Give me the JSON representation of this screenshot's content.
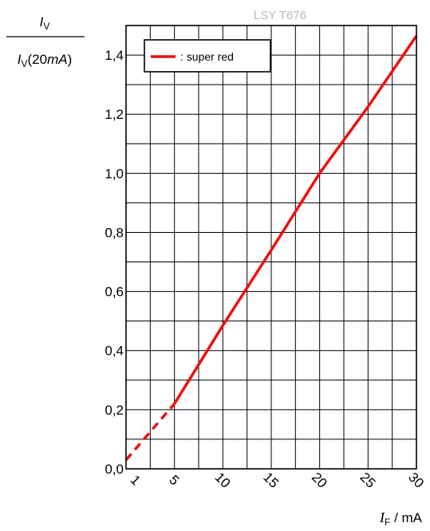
{
  "chart_data": {
    "type": "line",
    "watermark": "LSY T676",
    "ylabel": {
      "numerator": "I",
      "numerator_sub": "V",
      "denominator_i": "I",
      "denominator_sub": "V",
      "denominator_rest_open": "(20",
      "denominator_rest_italic": "mA",
      "denominator_rest_close": ")"
    },
    "xlabel": {
      "symbol": "I",
      "sub": "F",
      "unit": " / mA"
    },
    "xlim": [
      0,
      30
    ],
    "ylim": [
      0,
      1.5
    ],
    "xticks": [
      1,
      5,
      10,
      15,
      20,
      25,
      30
    ],
    "x_grid": [
      2.5,
      5,
      7.5,
      10,
      12.5,
      15,
      17.5,
      20,
      22.5,
      25,
      27.5,
      30
    ],
    "yticks": [
      "0,0",
      "0,2",
      "0,4",
      "0,6",
      "0,8",
      "1,0",
      "1,2",
      "1,4"
    ],
    "ytick_values": [
      0,
      0.2,
      0.4,
      0.6,
      0.8,
      1.0,
      1.2,
      1.4
    ],
    "y_grid": [
      0.1,
      0.2,
      0.3,
      0.4,
      0.5,
      0.6,
      0.7,
      0.8,
      0.9,
      1.0,
      1.1,
      1.2,
      1.3,
      1.4
    ],
    "grid": true,
    "legend_position": "top-left",
    "series": [
      {
        "name": ": super red",
        "color": "#ee1111",
        "dashed_segment": {
          "x": [
            0,
            5
          ],
          "y": [
            0.03,
            0.22
          ]
        },
        "solid_segment": {
          "x": [
            5,
            10,
            15,
            20,
            25,
            30
          ],
          "y": [
            0.22,
            0.485,
            0.74,
            1.0,
            1.225,
            1.465
          ]
        }
      }
    ]
  }
}
